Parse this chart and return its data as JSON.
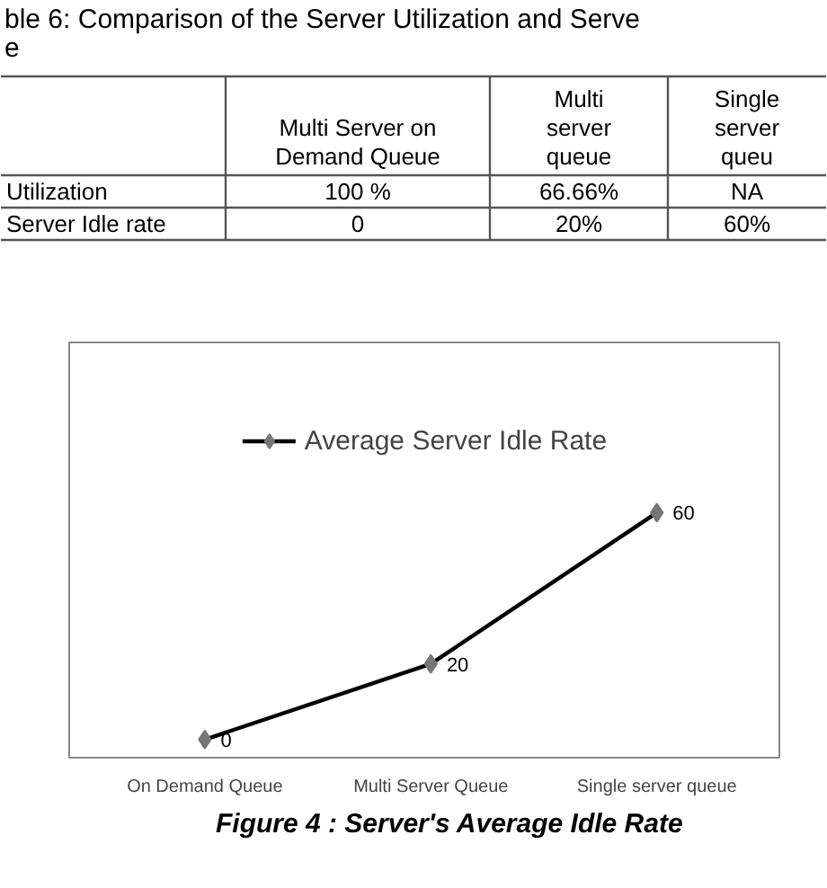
{
  "chart_data": [
    {
      "type": "other",
      "title": "ble 6: Comparison of   the Server Utilization and Serve",
      "subtitle": "e",
      "categories": [
        "Multi Server on Demand Queue",
        "Multi server queue",
        "Single server queu"
      ],
      "y_categories": [
        "Utilization",
        "Server Idle rate"
      ],
      "cell_labels": [
        [
          "100 %",
          "66.66%",
          "NA"
        ],
        [
          "0",
          "20%",
          "60%"
        ]
      ]
    },
    {
      "type": "line",
      "categories": [
        "On Demand Queue",
        "Multi Server Queue",
        "Single server queue"
      ],
      "series": [
        {
          "name": "Average Server Idle Rate",
          "color": "#000000",
          "values": [
            0,
            20,
            60
          ]
        }
      ],
      "marker": "diamond",
      "data_labels": true,
      "legend": "top",
      "grid": false,
      "annotations": [
        "Figure 4 : Server's Average Idle Rate"
      ]
    }
  ]
}
